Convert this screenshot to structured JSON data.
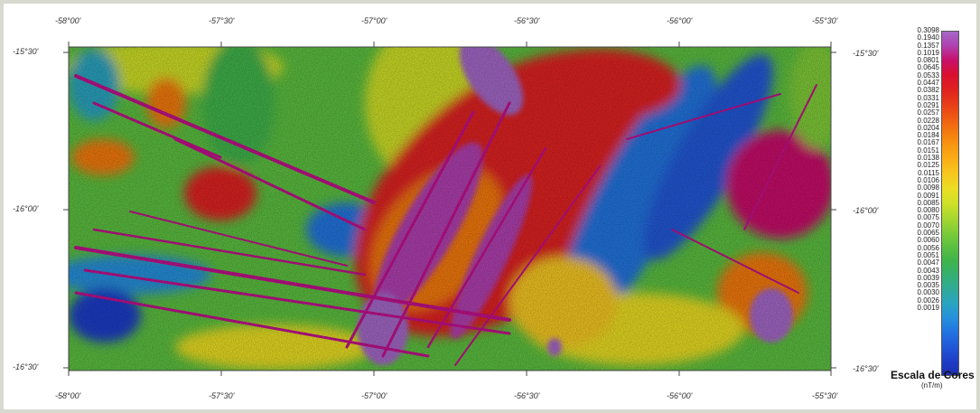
{
  "map": {
    "top_ticks": [
      "-58°00'",
      "-57°30'",
      "-57°00'",
      "-56°30'",
      "-56°00'",
      "-55°30'"
    ],
    "bottom_ticks": [
      "-58°00'",
      "-57°30'",
      "-57°00'",
      "-56°30'",
      "-56°00'",
      "-55°30'"
    ],
    "left_ticks": [
      "-15°30'",
      "-16°00'",
      "-16°30'"
    ],
    "right_ticks": [
      "-15°30'",
      "-16°00'",
      "-16°30'"
    ]
  },
  "legend": {
    "title": "Escala de Cores",
    "unit": "(nT/m)",
    "values": [
      "0.3098",
      "0.1940",
      "0.1357",
      "0.1019",
      "0.0801",
      "0.0645",
      "0.0533",
      "0.0447",
      "0.0382",
      "0.0331",
      "0.0291",
      "0.0257",
      "0.0228",
      "0.0204",
      "0.0184",
      "0.0167",
      "0.0151",
      "0.0138",
      "0.0125",
      "0.0115",
      "0.0106",
      "0.0098",
      "0.0091",
      "0.0085",
      "0.0080",
      "0.0075",
      "0.0070",
      "0.0065",
      "0.0060",
      "0.0056",
      "0.0051",
      "0.0047",
      "0.0043",
      "0.0039",
      "0.0035",
      "0.0030",
      "0.0026",
      "0.0019"
    ],
    "colors": [
      "#a468c8",
      "#b040b0",
      "#c8106a",
      "#d81030",
      "#e02020",
      "#e83a18",
      "#ee5a14",
      "#f47a10",
      "#f89810",
      "#fab018",
      "#f6c820",
      "#eade24",
      "#cfe028",
      "#a8d830",
      "#80cc38",
      "#5cc040",
      "#40b44c",
      "#34b070",
      "#30aa98",
      "#2aa4c0",
      "#2690dc",
      "#2274e0",
      "#2058d8",
      "#1e3ec8",
      "#1c2cb0"
    ],
    "map_colors": {
      "green": "#5cc040",
      "yellow": "#eade24",
      "orange": "#f47a10",
      "red": "#e02020",
      "magenta": "#c0108a",
      "purple": "#9a4cc8",
      "blue": "#2058d8",
      "cyan": "#2aa4c0"
    }
  }
}
